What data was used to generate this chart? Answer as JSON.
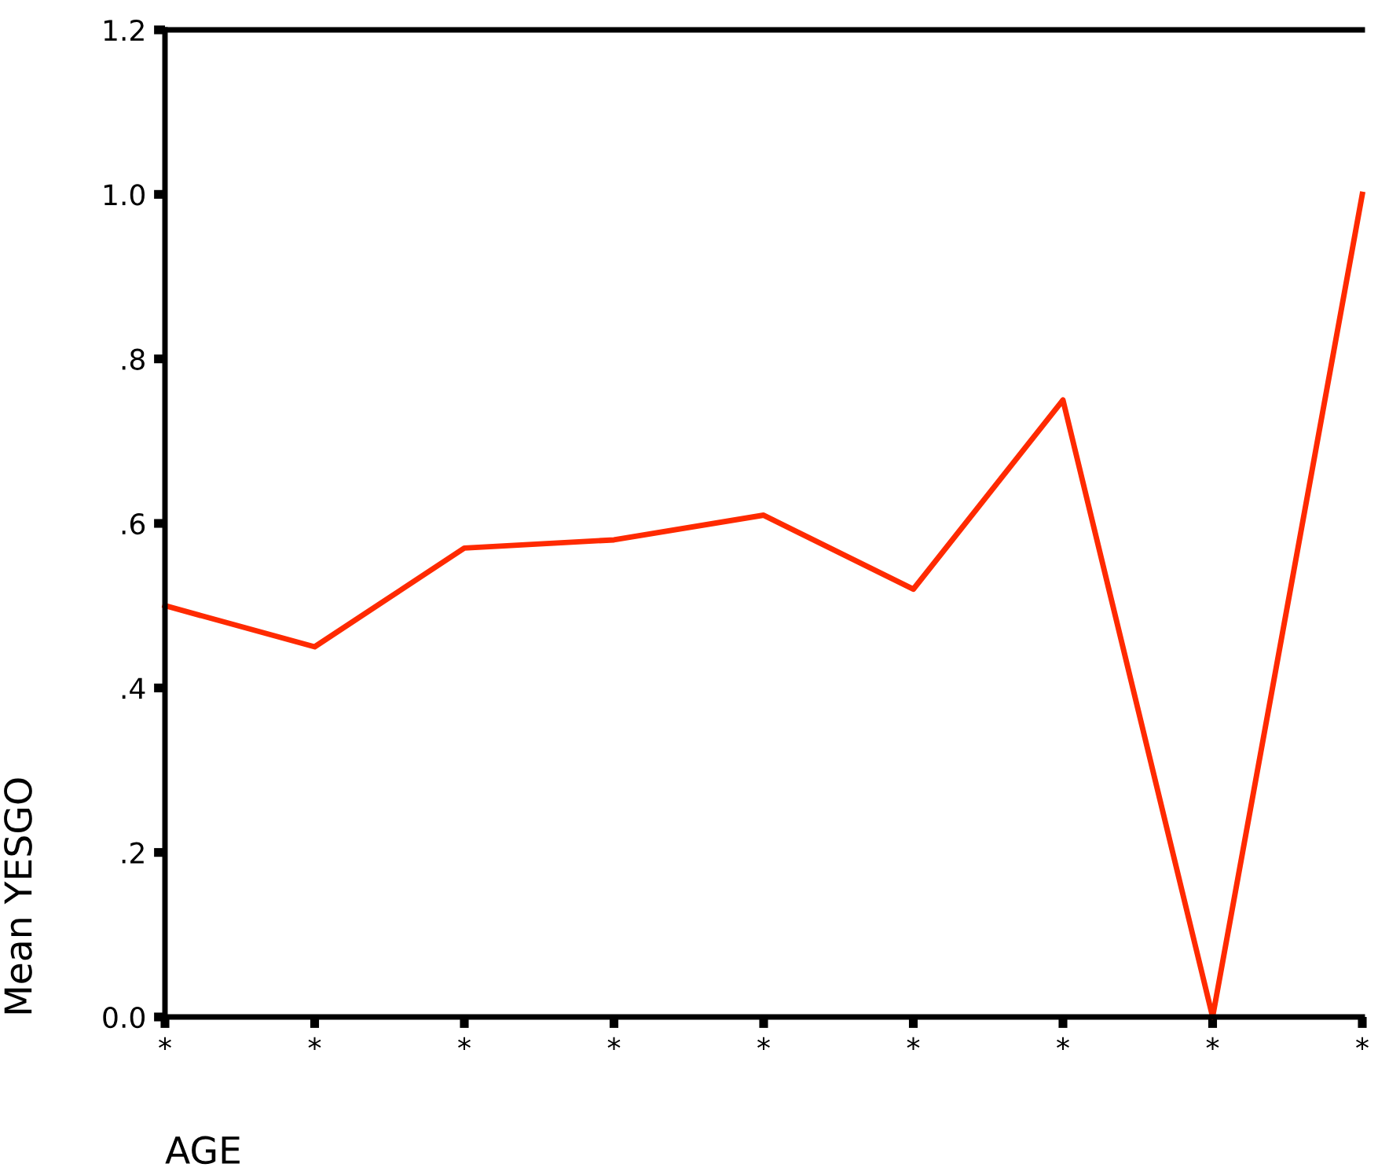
{
  "chart_data": {
    "type": "line",
    "xlabel": "AGE",
    "ylabel": "Mean YESGO",
    "categories": [
      "*",
      "*",
      "*",
      "*",
      "*",
      "*",
      "*",
      "*",
      "*"
    ],
    "series": [
      {
        "color": "#ff2a00",
        "values": [
          0.5,
          0.45,
          0.57,
          0.58,
          0.61,
          0.52,
          0.75,
          0.0,
          1.0
        ]
      }
    ],
    "ylim": [
      0,
      1.2
    ],
    "yticks": [
      {
        "value": 0,
        "label": "0.0"
      },
      {
        "value": 0.2,
        "label": ".2"
      },
      {
        "value": 0.4,
        "label": ".4"
      },
      {
        "value": 0.6,
        "label": ".6"
      },
      {
        "value": 0.8,
        "label": ".8"
      },
      {
        "value": 1.0,
        "label": "1.0"
      },
      {
        "value": 1.2,
        "label": "1.2"
      }
    ],
    "grid": false,
    "legend": false,
    "marker": "none",
    "line_style": "solid"
  }
}
